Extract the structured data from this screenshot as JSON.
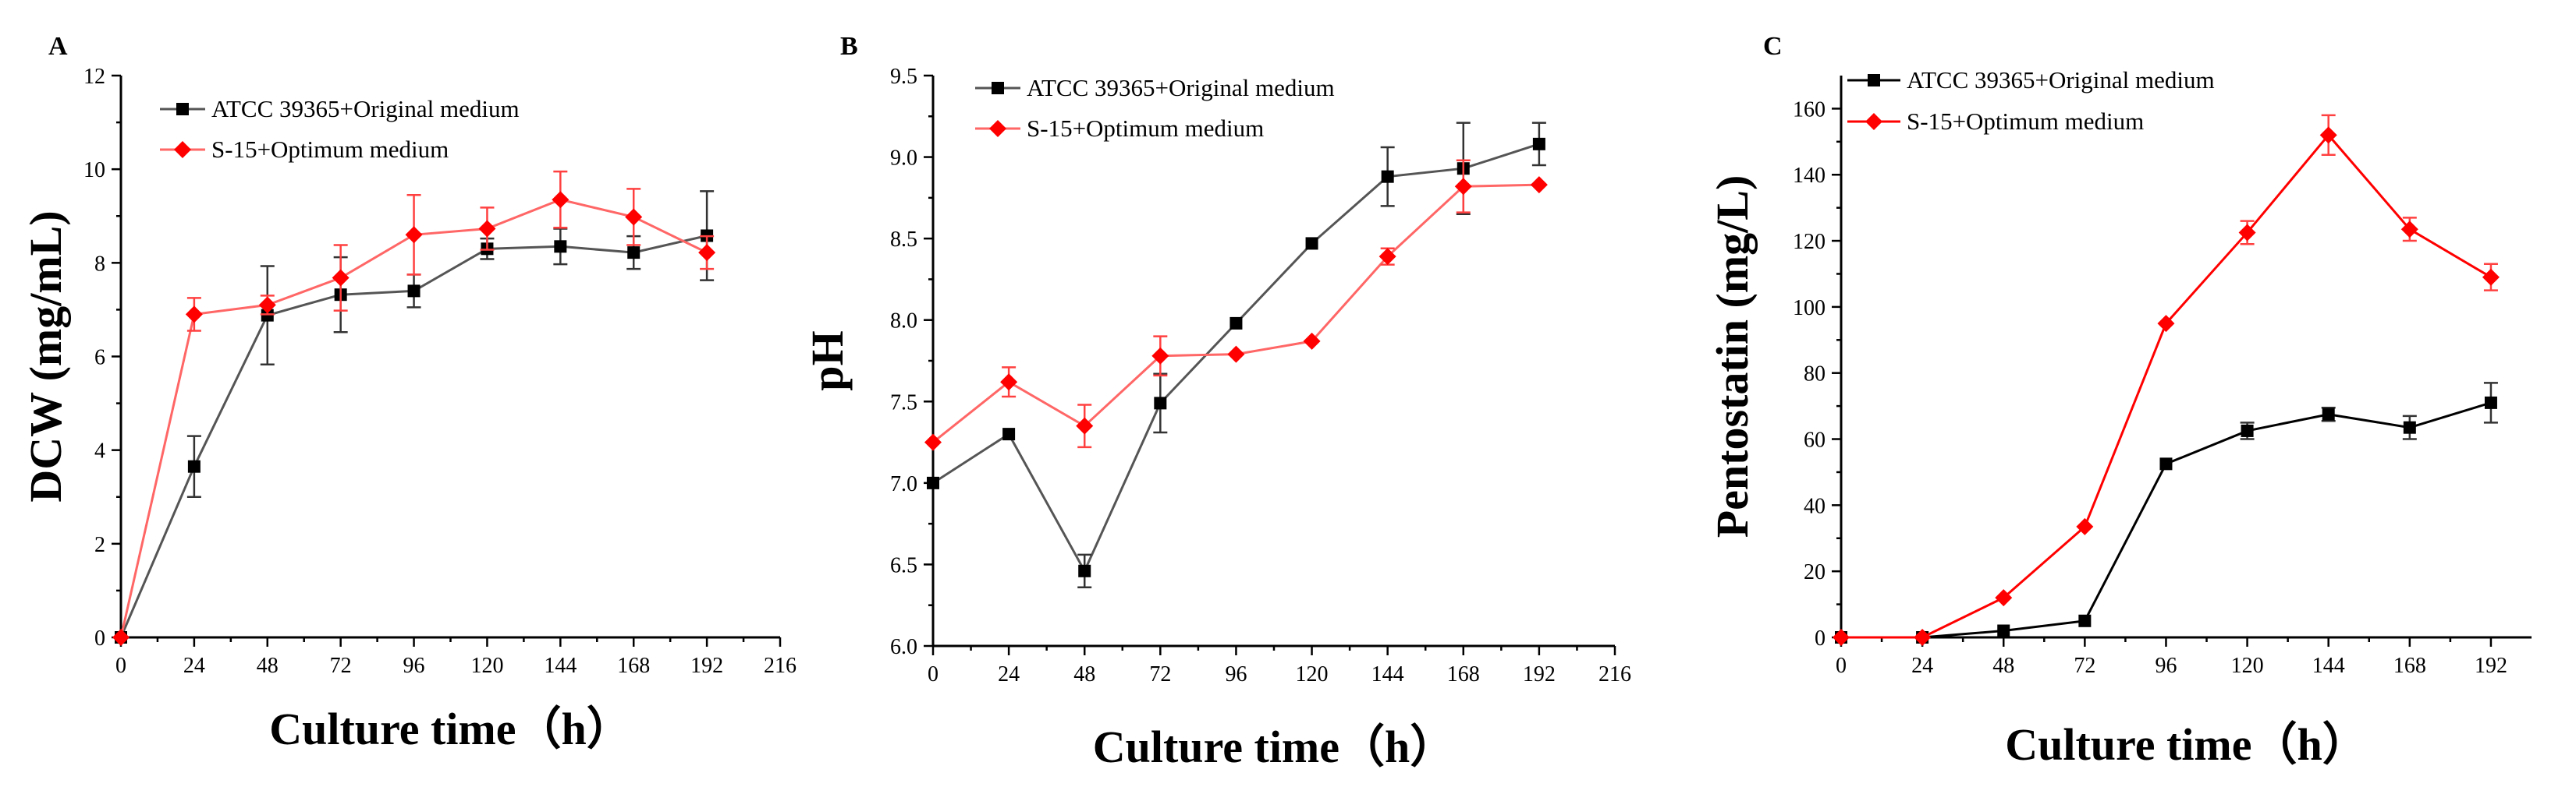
{
  "chart_data": [
    {
      "panel": "A",
      "type": "line",
      "xlabel": "Culture time（h）",
      "ylabel": "DCW (mg/mL)",
      "xlim": [
        0,
        216
      ],
      "ylim": [
        0,
        12
      ],
      "xticks": [
        0,
        24,
        48,
        72,
        96,
        120,
        144,
        168,
        192,
        216
      ],
      "yticks": [
        0,
        2,
        4,
        6,
        8,
        10,
        12
      ],
      "ytick_labels": [
        "0",
        "2",
        "4",
        "6",
        "8",
        "10",
        "12"
      ],
      "legend_position": "top-center",
      "series": [
        {
          "name": "ATCC 39365+Original medium",
          "color": "#000000",
          "line_color": "#555555",
          "marker": "square",
          "x": [
            0,
            24,
            48,
            72,
            96,
            120,
            144,
            168,
            192
          ],
          "y": [
            0,
            3.65,
            6.88,
            7.32,
            7.4,
            8.3,
            8.35,
            8.22,
            8.58
          ],
          "err": [
            0,
            0.65,
            1.05,
            0.8,
            0.35,
            0.22,
            0.38,
            0.35,
            0.95
          ]
        },
        {
          "name": "S-15+Optimum medium",
          "color": "#ff0000",
          "line_color": "#ff6666",
          "marker": "diamond",
          "x": [
            0,
            24,
            48,
            72,
            96,
            120,
            144,
            168,
            192
          ],
          "y": [
            0,
            6.9,
            7.1,
            7.68,
            8.6,
            8.73,
            9.35,
            8.98,
            8.22
          ],
          "err": [
            0,
            0.35,
            0.2,
            0.7,
            0.85,
            0.45,
            0.6,
            0.6,
            0.35
          ]
        }
      ]
    },
    {
      "panel": "B",
      "type": "line",
      "xlabel": "Culture time（h）",
      "ylabel": "pH",
      "xlim": [
        0,
        216
      ],
      "ylim": [
        6.0,
        9.5
      ],
      "xticks": [
        0,
        24,
        48,
        72,
        96,
        120,
        144,
        168,
        192,
        216
      ],
      "yticks": [
        6.0,
        6.5,
        7.0,
        7.5,
        8.0,
        8.5,
        9.0,
        9.5
      ],
      "ytick_labels": [
        "6.0",
        "6.5",
        "7.0",
        "7.5",
        "8.0",
        "8.5",
        "9.0",
        "9.5"
      ],
      "legend_position": "top-center",
      "series": [
        {
          "name": "ATCC 39365+Original medium",
          "color": "#000000",
          "line_color": "#555555",
          "marker": "square",
          "x": [
            0,
            24,
            48,
            72,
            96,
            120,
            144,
            168,
            192
          ],
          "y": [
            7.0,
            7.3,
            6.46,
            7.49,
            7.98,
            8.47,
            8.88,
            8.93,
            9.08
          ],
          "err": [
            0,
            0,
            0.1,
            0.18,
            0,
            0,
            0.18,
            0.28,
            0.13
          ]
        },
        {
          "name": "S-15+Optimum medium",
          "color": "#ff0000",
          "line_color": "#ff6666",
          "marker": "diamond",
          "x": [
            0,
            24,
            48,
            72,
            96,
            120,
            144,
            168,
            192
          ],
          "y": [
            7.25,
            7.62,
            7.35,
            7.78,
            7.79,
            7.87,
            8.39,
            8.82,
            8.83
          ],
          "err": [
            0,
            0.09,
            0.13,
            0.12,
            0,
            0,
            0.05,
            0.16,
            0
          ]
        }
      ]
    },
    {
      "panel": "C",
      "type": "line",
      "xlabel": "Culture time（h）",
      "ylabel": "Pentostatin (mg/L)",
      "xlim": [
        0,
        204
      ],
      "ylim": [
        0,
        170
      ],
      "xticks": [
        0,
        24,
        48,
        72,
        96,
        120,
        144,
        168,
        192
      ],
      "yticks": [
        0,
        20,
        40,
        60,
        80,
        100,
        120,
        140,
        160
      ],
      "ytick_labels": [
        "0",
        "20",
        "40",
        "60",
        "80",
        "100",
        "120",
        "140",
        "160"
      ],
      "legend_position": "top-left",
      "series": [
        {
          "name": "ATCC 39365+Original medium",
          "color": "#000000",
          "line_color": "#000000",
          "marker": "square",
          "x": [
            0,
            24,
            48,
            72,
            96,
            120,
            144,
            168,
            192
          ],
          "y": [
            0,
            0,
            2,
            5,
            52.5,
            62.5,
            67.5,
            63.5,
            71
          ],
          "err": [
            0,
            0,
            0,
            0,
            0,
            2.5,
            2,
            3.5,
            6
          ]
        },
        {
          "name": "S-15+Optimum medium",
          "color": "#ff0000",
          "line_color": "#ff0000",
          "marker": "diamond",
          "x": [
            0,
            24,
            48,
            72,
            96,
            120,
            144,
            168,
            192
          ],
          "y": [
            0,
            0,
            12,
            33.5,
            95,
            122.5,
            152,
            123.5,
            109
          ],
          "err": [
            0,
            0,
            0,
            0,
            0,
            3.5,
            6,
            3.5,
            4
          ]
        }
      ]
    }
  ]
}
